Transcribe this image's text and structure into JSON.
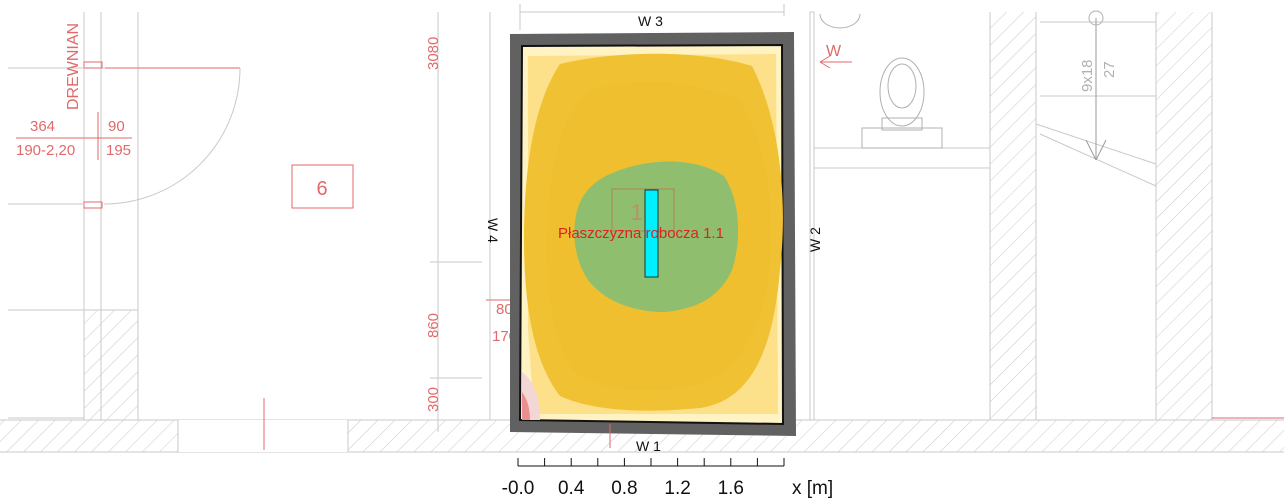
{
  "plan": {
    "room_number": "6",
    "room_number_center": "13",
    "label_drewniane": "DREWNIAN",
    "dim_364": "364",
    "dim_190": "190-2,20",
    "dim_90": "90",
    "dim_195": "195",
    "dim_3080": "3080",
    "dim_860": "860",
    "dim_300": "300",
    "dim_80": "80",
    "dim_170": "170",
    "stair_9x18": "9x18",
    "stair_27": "27",
    "arrow_w": "W"
  },
  "walls": {
    "w1": "W 1",
    "w2": "W 2",
    "w3": "W 3",
    "w4": "W 4"
  },
  "work_plane": {
    "label": "Płaszczyzna robocza 1.1"
  },
  "scale": {
    "ticks": [
      "-0.0",
      "0.4",
      "0.8",
      "1.2",
      "1.6"
    ],
    "unit": "x [m]"
  },
  "colors": {
    "wall_frame": "#616161",
    "zone_outer": "#fff3c4",
    "zone_light": "#fde08a",
    "zone_mid": "#f0c233",
    "zone_center": "#8fbf6e",
    "luminaire": "#00f0ff",
    "red_text": "#e02020",
    "cad_red": "#e06a6a"
  }
}
